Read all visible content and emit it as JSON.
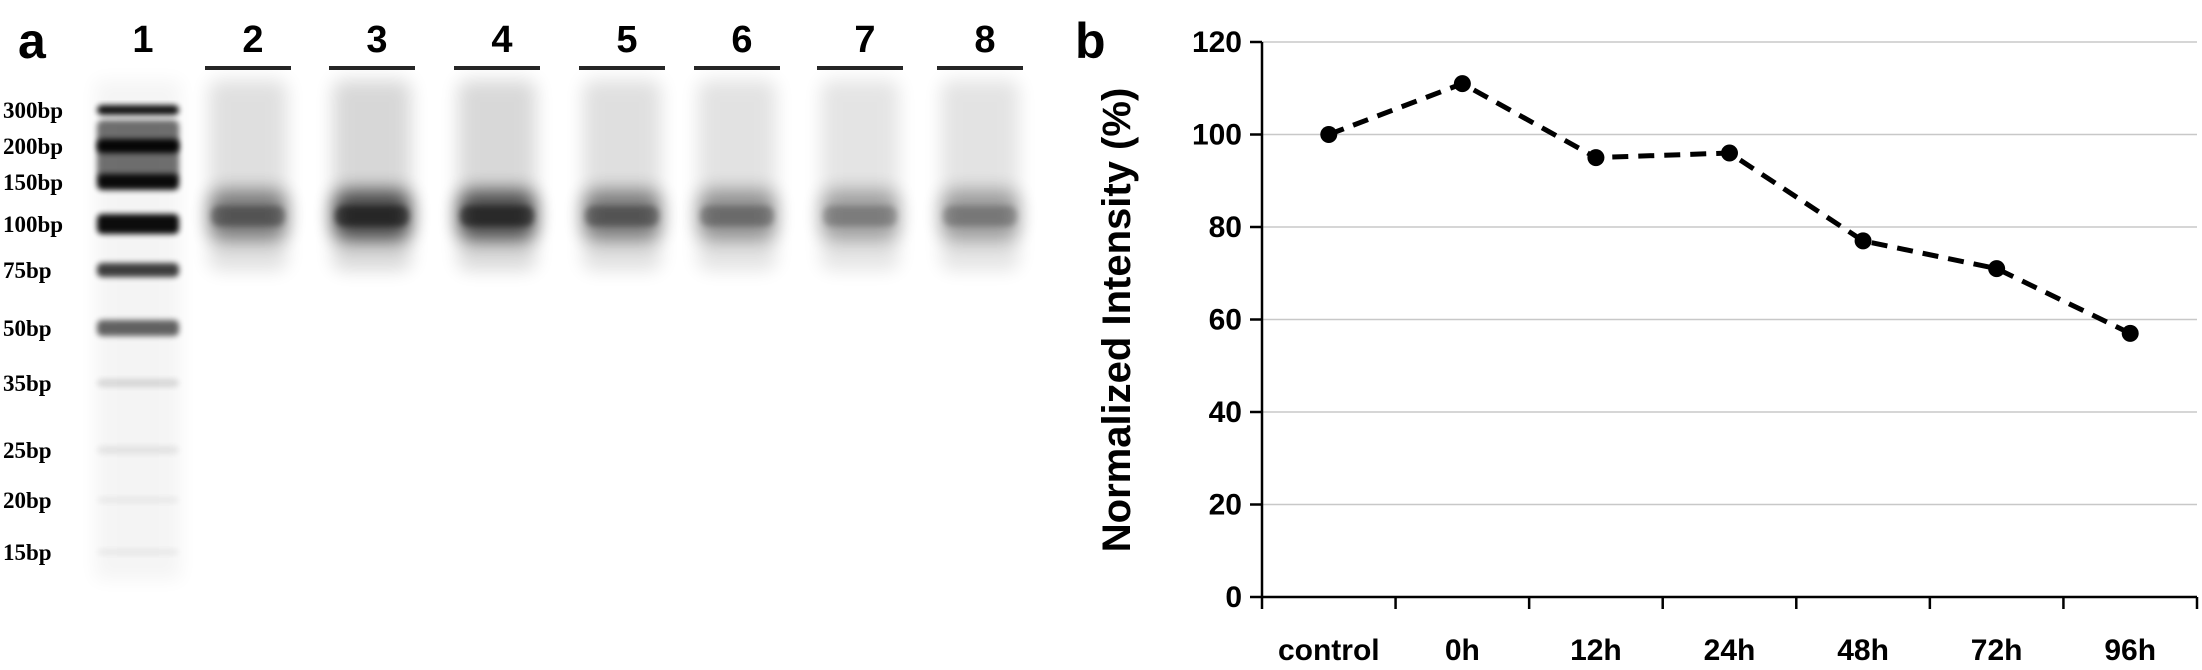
{
  "figure": {
    "panel_a": {
      "letter": "a",
      "lanes": [
        "1",
        "2",
        "3",
        "4",
        "5",
        "6",
        "7",
        "8"
      ],
      "ladder_labels": [
        "300bp",
        "200bp",
        "150bp",
        "100bp",
        "75bp",
        "50bp",
        "35bp",
        "25bp",
        "20bp",
        "15bp"
      ],
      "sample_band_intensity": [
        0.62,
        0.92,
        0.9,
        0.62,
        0.5,
        0.42,
        0.44
      ]
    },
    "panel_b": {
      "letter": "b"
    }
  },
  "chart_data": {
    "type": "line",
    "title": "",
    "xlabel": "",
    "ylabel": "Normalized Intensity (%)",
    "categories": [
      "control",
      "0h",
      "12h",
      "24h",
      "48h",
      "72h",
      "96h"
    ],
    "series": [
      {
        "values": [
          100,
          111,
          95,
          96,
          77,
          71,
          57
        ]
      }
    ],
    "ylim": [
      0,
      120
    ],
    "yticks": [
      0,
      20,
      40,
      60,
      80,
      100,
      120
    ],
    "grid": true,
    "line_style": "dashed",
    "marker": "filled-circle",
    "color": "#000000",
    "grid_color": "#c8c8c8"
  }
}
